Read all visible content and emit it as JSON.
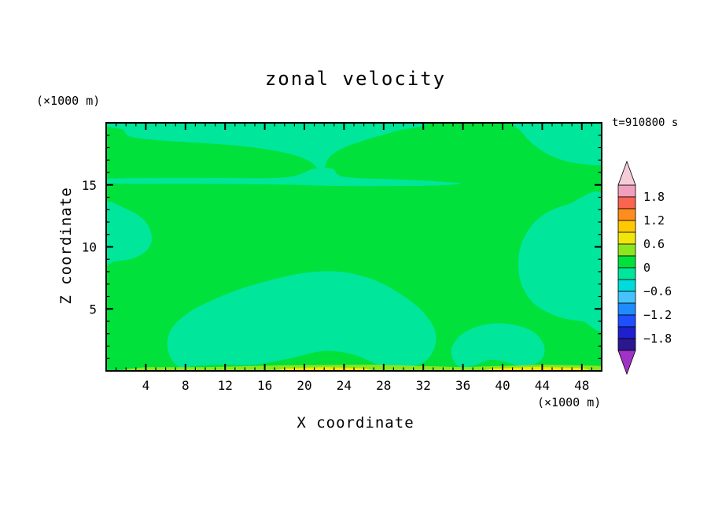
{
  "title": "zonal velocity",
  "time_label": "t=910800 s",
  "y_axis_unit": "(×1000 m)",
  "x_axis_unit": "(×1000 m)",
  "x_axis_label": "X coordinate",
  "y_axis_label": "Z coordinate",
  "chart_data": {
    "type": "heatmap",
    "subtype": "filled-contour",
    "title": "zonal velocity",
    "xlabel": "X coordinate",
    "ylabel": "Z coordinate",
    "x_unit": "(×1000 m)",
    "y_unit": "(×1000 m)",
    "time_stamp": "t=910800 s",
    "x_range": [
      0,
      50
    ],
    "z_range": [
      0,
      20
    ],
    "x_major_ticks": [
      4,
      8,
      12,
      16,
      20,
      24,
      28,
      32,
      36,
      40,
      44,
      48
    ],
    "y_major_ticks": [
      5,
      10,
      15
    ],
    "minor_tick_step": 1,
    "contour_interval": 0.3,
    "colorbar": {
      "tick_labels": [
        "1.8",
        "1.2",
        "0.6",
        "0",
        "−0.6",
        "−1.2",
        "−1.8"
      ],
      "tick_values": [
        1.8,
        1.2,
        0.6,
        0,
        -0.6,
        -1.2,
        -1.8
      ],
      "over_arrow_color": "#f5ccd8",
      "under_arrow_color": "#a032c8",
      "bands": [
        {
          "from": 1.8,
          "to": 2.1,
          "color": "#f0a0be"
        },
        {
          "from": 1.5,
          "to": 1.8,
          "color": "#fa6450"
        },
        {
          "from": 1.2,
          "to": 1.5,
          "color": "#ff8c1e"
        },
        {
          "from": 0.9,
          "to": 1.2,
          "color": "#ffc800"
        },
        {
          "from": 0.6,
          "to": 0.9,
          "color": "#f0e60a"
        },
        {
          "from": 0.3,
          "to": 0.6,
          "color": "#8ce61e"
        },
        {
          "from": 0.0,
          "to": 0.3,
          "color": "#00e13c"
        },
        {
          "from": -0.3,
          "to": 0.0,
          "color": "#00e69b"
        },
        {
          "from": -0.6,
          "to": -0.3,
          "color": "#00dcdc"
        },
        {
          "from": -0.9,
          "to": -0.6,
          "color": "#46c3ff"
        },
        {
          "from": -1.2,
          "to": -0.9,
          "color": "#1e8cff"
        },
        {
          "from": -1.5,
          "to": -1.2,
          "color": "#1e50ff"
        },
        {
          "from": -1.8,
          "to": -1.5,
          "color": "#1f1fd2"
        },
        {
          "from": -2.1,
          "to": -1.8,
          "color": "#2b1790"
        }
      ]
    },
    "field": {
      "background_band": {
        "range": [
          0,
          0.3
        ],
        "color": "#00e13c"
      },
      "regions": [
        {
          "name": "top-strip",
          "band": [
            -0.3,
            0
          ],
          "color": "#00e69b",
          "smooth": true,
          "points": [
            [
              1.8,
              20
            ],
            [
              30.5,
              20
            ],
            [
              29,
              19.3
            ],
            [
              26.5,
              18.7
            ],
            [
              24,
              18.0
            ],
            [
              22.5,
              17.2
            ],
            [
              21.8,
              16.1
            ],
            [
              20.5,
              16.9
            ],
            [
              18.5,
              17.5
            ],
            [
              15,
              18.0
            ],
            [
              11,
              18.3
            ],
            [
              6,
              18.55
            ],
            [
              2.6,
              18.85
            ],
            [
              1.8,
              19.4
            ]
          ]
        },
        {
          "name": "z15-streak",
          "band": [
            -0.3,
            0
          ],
          "color": "#00e69b",
          "smooth": true,
          "points": [
            [
              0.2,
              15.5
            ],
            [
              10,
              15.55
            ],
            [
              18,
              15.6
            ],
            [
              21,
              16.3
            ],
            [
              22.8,
              16.3
            ],
            [
              24,
              15.65
            ],
            [
              29,
              15.45
            ],
            [
              33,
              15.3
            ],
            [
              35.8,
              15.1
            ],
            [
              33,
              14.95
            ],
            [
              28,
              14.9
            ],
            [
              23,
              14.92
            ],
            [
              18,
              15.02
            ],
            [
              10,
              15.08
            ],
            [
              0.2,
              15.12
            ]
          ]
        },
        {
          "name": "top-right-corner",
          "band": [
            -0.3,
            0
          ],
          "color": "#00e69b",
          "smooth": true,
          "points": [
            [
              41.5,
              20.3
            ],
            [
              50.5,
              20.3
            ],
            [
              50.5,
              16.9
            ],
            [
              47.5,
              16.75
            ],
            [
              45,
              17.3
            ],
            [
              43.2,
              18.2
            ],
            [
              42,
              19.2
            ]
          ]
        },
        {
          "name": "left-blob",
          "band": [
            -0.3,
            0
          ],
          "color": "#00e69b",
          "smooth": true,
          "points": [
            [
              -0.5,
              13.4
            ],
            [
              2.2,
              13.0
            ],
            [
              4.0,
              12.0
            ],
            [
              4.6,
              10.8
            ],
            [
              4.2,
              9.8
            ],
            [
              2.8,
              9.1
            ],
            [
              0.8,
              8.8
            ],
            [
              -0.5,
              8.7
            ]
          ]
        },
        {
          "name": "right-blob",
          "band": [
            -0.3,
            0
          ],
          "color": "#00e69b",
          "smooth": true,
          "points": [
            [
              50.5,
              13.8
            ],
            [
              46.5,
              13.4
            ],
            [
              43.8,
              12.4
            ],
            [
              42.2,
              10.8
            ],
            [
              41.6,
              9.0
            ],
            [
              41.9,
              7.0
            ],
            [
              43.2,
              5.4
            ],
            [
              45.5,
              4.4
            ],
            [
              48,
              4.0
            ],
            [
              50.5,
              3.9
            ]
          ]
        },
        {
          "name": "center-blob",
          "band": [
            -0.3,
            0
          ],
          "color": "#00e69b",
          "smooth": true,
          "points": [
            [
              7.2,
              0.4
            ],
            [
              6.2,
              1.8
            ],
            [
              6.6,
              3.4
            ],
            [
              8.5,
              4.8
            ],
            [
              11,
              5.8
            ],
            [
              13.5,
              6.6
            ],
            [
              16.5,
              7.3
            ],
            [
              20,
              7.9
            ],
            [
              23.5,
              8.0
            ],
            [
              26.8,
              7.4
            ],
            [
              29.5,
              6.3
            ],
            [
              31.8,
              4.9
            ],
            [
              33.2,
              3.2
            ],
            [
              33.0,
              1.6
            ],
            [
              31.5,
              0.5
            ],
            [
              28,
              0.4
            ],
            [
              25,
              1.3
            ],
            [
              22,
              1.6
            ],
            [
              18.5,
              1.0
            ],
            [
              15,
              0.5
            ],
            [
              11.5,
              0.5
            ],
            [
              9,
              0.4
            ]
          ]
        },
        {
          "name": "bottom-right-blob",
          "band": [
            -0.3,
            0
          ],
          "color": "#00e69b",
          "smooth": true,
          "points": [
            [
              35.5,
              0.4
            ],
            [
              34.8,
              1.6
            ],
            [
              35.8,
              2.9
            ],
            [
              38,
              3.7
            ],
            [
              40.5,
              3.8
            ],
            [
              43,
              3.2
            ],
            [
              44.2,
              2.0
            ],
            [
              43.8,
              0.8
            ],
            [
              42,
              0.4
            ],
            [
              39,
              0.9
            ],
            [
              37,
              0.4
            ]
          ]
        },
        {
          "name": "surface-yellowgreen-strip",
          "band": [
            0.3,
            0.6
          ],
          "color": "#8ce61e",
          "smooth": false,
          "points": [
            [
              1.5,
              0
            ],
            [
              50,
              0
            ],
            [
              50,
              0.4
            ],
            [
              44,
              0.5
            ],
            [
              36,
              0.3
            ],
            [
              27,
              0.5
            ],
            [
              18,
              0.45
            ],
            [
              10,
              0.3
            ],
            [
              4,
              0.3
            ],
            [
              2,
              0.15
            ]
          ]
        },
        {
          "name": "surface-yellow-strip-1",
          "band": [
            0.6,
            0.9
          ],
          "color": "#f0e60a",
          "smooth": false,
          "points": [
            [
              17,
              0
            ],
            [
              27,
              0
            ],
            [
              26,
              0.22
            ],
            [
              22,
              0.3
            ],
            [
              18,
              0.2
            ]
          ]
        },
        {
          "name": "surface-yellow-strip-2",
          "band": [
            0.6,
            0.9
          ],
          "color": "#f0e60a",
          "smooth": false,
          "points": [
            [
              38,
              0
            ],
            [
              49,
              0
            ],
            [
              48,
              0.25
            ],
            [
              43,
              0.32
            ],
            [
              39,
              0.2
            ]
          ]
        }
      ]
    }
  }
}
